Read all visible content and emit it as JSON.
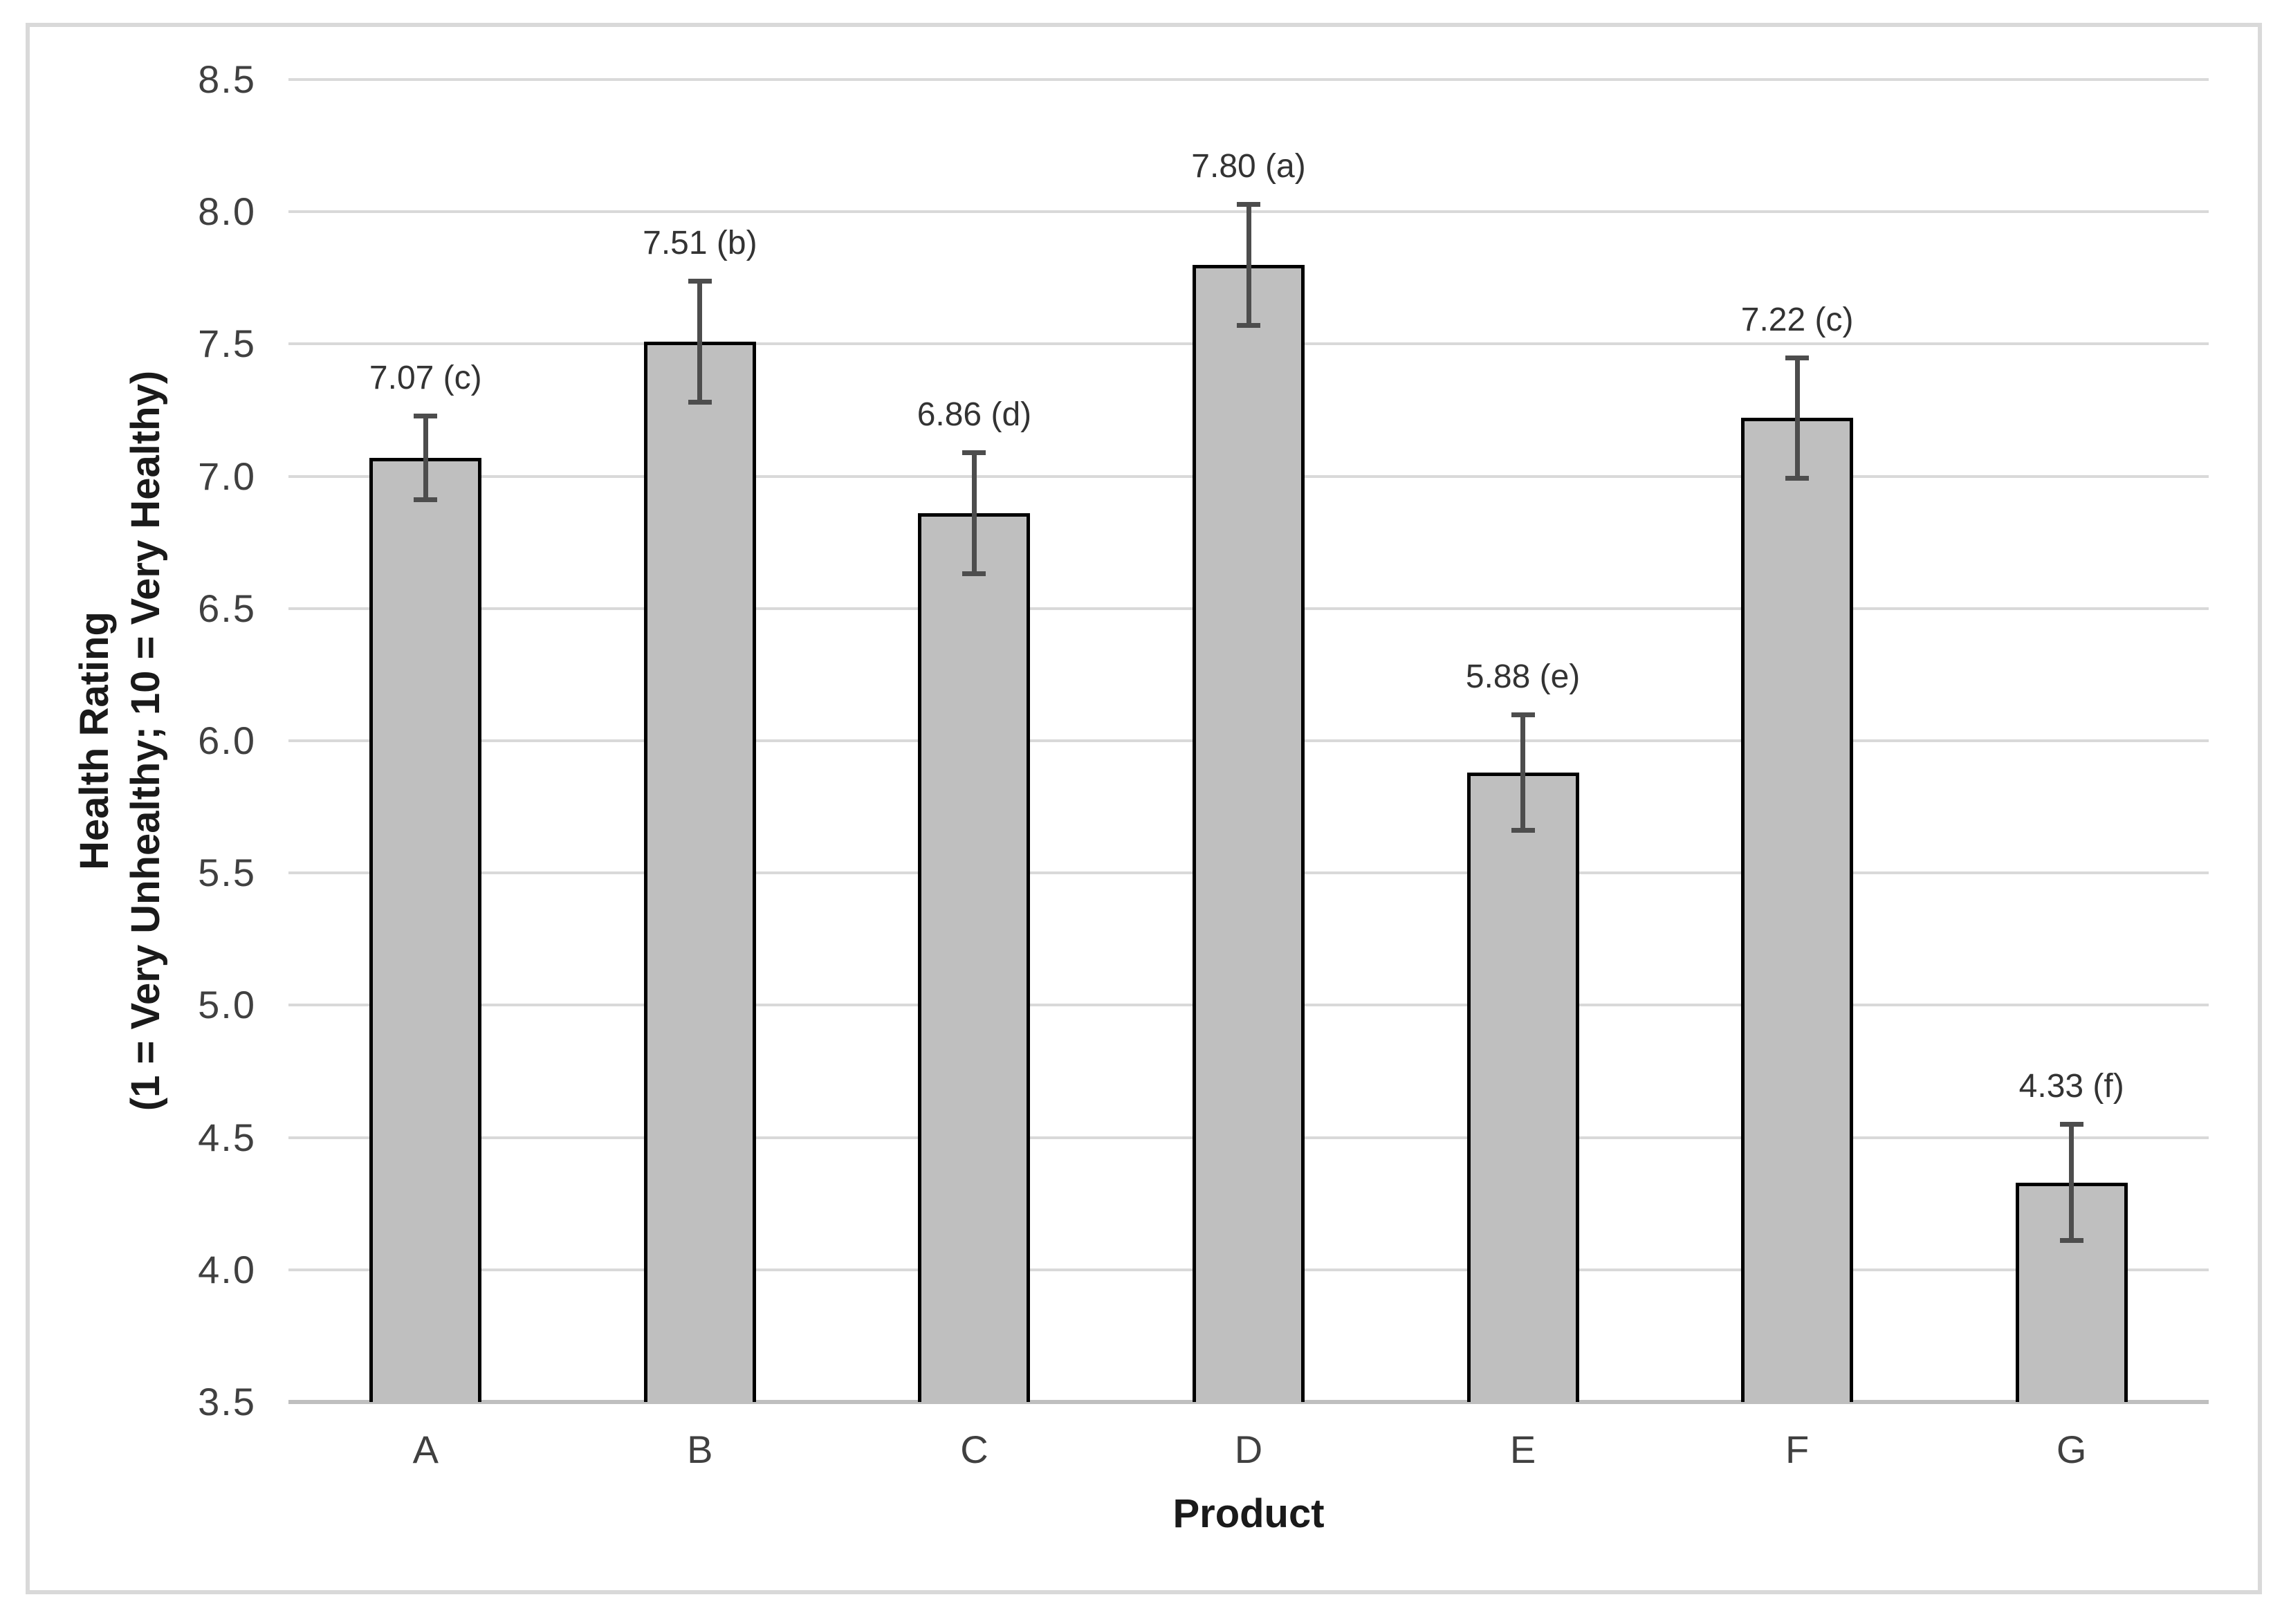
{
  "chart_data": {
    "type": "bar",
    "categories": [
      "A",
      "B",
      "C",
      "D",
      "E",
      "F",
      "G"
    ],
    "values": [
      7.07,
      7.51,
      6.86,
      7.8,
      5.88,
      7.22,
      4.33
    ],
    "errors": [
      0.16,
      0.23,
      0.23,
      0.23,
      0.22,
      0.23,
      0.22
    ],
    "bar_labels": [
      "7.07 (c)",
      "7.51 (b)",
      "6.86 (d)",
      "7.80 (a)",
      "5.88 (e)",
      "7.22 (c)",
      "4.33 (f)"
    ],
    "title": "",
    "xlabel": "Product",
    "ylabel_line1": "Health Rating",
    "ylabel_line2": "(1 = Very Unhealthy; 10 = Very Healthy)",
    "ylim": [
      3.5,
      8.5
    ],
    "ytick_step": 0.5,
    "yticks": [
      "8.5",
      "8.0",
      "7.5",
      "7.0",
      "6.5",
      "6.0",
      "5.5",
      "5.0",
      "4.5",
      "4.0",
      "3.5"
    ],
    "grid": true,
    "legend": "none",
    "colors": {
      "bar_fill": "#bfbfbf",
      "bar_border": "#000000",
      "error_bar": "#4d4d4d",
      "gridline": "#d9d9d9",
      "axis_line": "#bfbfbf",
      "tick_label": "#404040",
      "title_text": "#1a1a1a",
      "frame_border": "#d9d9d9",
      "background": "#ffffff"
    }
  }
}
